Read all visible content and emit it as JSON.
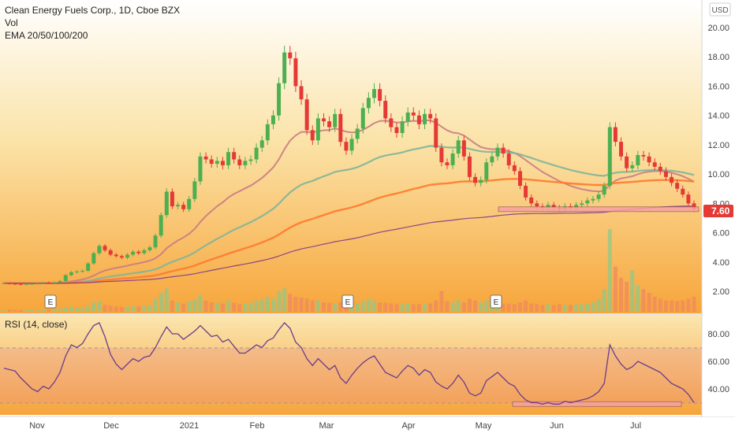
{
  "header": {
    "title": "Clean Energy Fuels Corp., 1D, Cboe BZX",
    "vol_label": "Vol",
    "ema_label": "EMA 20/50/100/200"
  },
  "currency": "USD",
  "current_price": "7.60",
  "rsi_label": "RSI (14, close)",
  "earnings_marker": "E",
  "colors": {
    "up": "#4caf50",
    "down": "#e53935",
    "ema20": "#c97b84",
    "ema50": "#7fb59a",
    "ema100": "#ff7a2e",
    "ema200": "#7e3a8c",
    "rsi_line": "#6a3d8a",
    "support_fill": "#f7a1a1",
    "price_tag": "#e53935"
  },
  "chart_data": [
    {
      "type": "candlestick",
      "title": "Clean Energy Fuels Corp., 1D, Cboe BZX",
      "ylabel": "USD",
      "ylim": [
        0.8,
        21
      ],
      "y_ticks": [
        "2.00",
        "4.00",
        "6.00",
        "8.00",
        "10.00",
        "12.00",
        "14.00",
        "16.00",
        "18.00",
        "20.00"
      ],
      "x_ticks": [
        "Nov",
        "Dec",
        "2021",
        "Feb",
        "Mar",
        "Apr",
        "May",
        "Jun",
        "Jul"
      ],
      "closes": [
        2.55,
        2.52,
        2.5,
        2.48,
        2.5,
        2.52,
        2.55,
        2.6,
        2.58,
        2.6,
        2.7,
        3.1,
        3.3,
        3.35,
        3.4,
        3.9,
        4.6,
        5.1,
        4.8,
        4.5,
        4.4,
        4.3,
        4.5,
        4.7,
        4.6,
        4.8,
        5.0,
        5.8,
        7.2,
        8.8,
        7.8,
        7.9,
        7.6,
        8.3,
        9.5,
        11.2,
        11.0,
        10.7,
        10.9,
        10.6,
        11.5,
        11.0,
        10.6,
        10.9,
        11.0,
        11.8,
        12.3,
        13.4,
        14.0,
        16.2,
        18.3,
        17.9,
        16.0,
        15.1,
        13.0,
        12.3,
        13.8,
        13.6,
        13.2,
        14.1,
        12.2,
        11.6,
        12.4,
        13.1,
        14.5,
        15.2,
        15.8,
        15.0,
        13.8,
        13.2,
        12.8,
        13.6,
        14.2,
        14.0,
        13.4,
        14.1,
        13.8,
        11.8,
        10.8,
        10.6,
        11.4,
        12.3,
        11.2,
        9.8,
        9.4,
        9.6,
        10.8,
        11.2,
        11.8,
        11.4,
        10.6,
        10.2,
        9.2,
        8.4,
        8.0,
        7.8,
        7.7,
        7.9,
        7.7,
        7.6,
        7.8,
        7.7,
        7.9,
        8.0,
        8.2,
        8.3,
        8.6,
        9.2,
        13.2,
        12.2,
        11.2,
        10.4,
        10.6,
        11.3,
        11.2,
        10.8,
        10.5,
        10.2,
        9.8,
        9.4,
        9.0,
        8.6,
        8.0,
        7.6
      ],
      "volumes": [
        0.06,
        0.06,
        0.05,
        0.05,
        0.06,
        0.06,
        0.05,
        0.07,
        0.06,
        0.07,
        0.09,
        0.12,
        0.14,
        0.1,
        0.1,
        0.15,
        0.25,
        0.28,
        0.18,
        0.16,
        0.14,
        0.13,
        0.14,
        0.15,
        0.14,
        0.16,
        0.18,
        0.35,
        0.5,
        0.62,
        0.3,
        0.25,
        0.22,
        0.28,
        0.34,
        0.45,
        0.3,
        0.25,
        0.24,
        0.22,
        0.3,
        0.24,
        0.2,
        0.22,
        0.24,
        0.3,
        0.34,
        0.4,
        0.35,
        0.55,
        0.62,
        0.48,
        0.4,
        0.38,
        0.35,
        0.3,
        0.3,
        0.25,
        0.24,
        0.22,
        0.26,
        0.22,
        0.2,
        0.22,
        0.28,
        0.35,
        0.3,
        0.25,
        0.24,
        0.22,
        0.2,
        0.2,
        0.22,
        0.2,
        0.2,
        0.2,
        0.22,
        0.3,
        0.55,
        0.28,
        0.25,
        0.3,
        0.25,
        0.35,
        0.3,
        0.25,
        0.3,
        0.25,
        0.2,
        0.2,
        0.22,
        0.2,
        0.25,
        0.3,
        0.22,
        0.2,
        0.18,
        0.2,
        0.18,
        0.2,
        0.18,
        0.18,
        0.2,
        0.2,
        0.22,
        0.25,
        0.35,
        0.6,
        2.2,
        1.2,
        0.9,
        0.8,
        1.1,
        0.7,
        0.6,
        0.5,
        0.4,
        0.35,
        0.3,
        0.3,
        0.28,
        0.3,
        0.35,
        0.4
      ],
      "support_level": 7.6,
      "earnings_markers": [
        "E",
        "E",
        "E"
      ]
    },
    {
      "type": "line",
      "title": "RSI (14, close)",
      "ylim": [
        25,
        95
      ],
      "y_ticks": [
        "40.00",
        "60.00",
        "80.00"
      ],
      "values": [
        55,
        54,
        53,
        48,
        44,
        40,
        38,
        42,
        40,
        45,
        52,
        64,
        72,
        70,
        73,
        80,
        86,
        88,
        78,
        65,
        58,
        54,
        58,
        62,
        60,
        63,
        64,
        70,
        78,
        85,
        80,
        80,
        76,
        79,
        82,
        86,
        82,
        78,
        79,
        74,
        76,
        71,
        66,
        66,
        69,
        72,
        70,
        75,
        77,
        83,
        88,
        84,
        74,
        70,
        62,
        57,
        62,
        58,
        54,
        57,
        48,
        44,
        50,
        55,
        59,
        62,
        64,
        58,
        52,
        50,
        48,
        53,
        57,
        55,
        50,
        54,
        52,
        45,
        42,
        40,
        44,
        50,
        45,
        37,
        35,
        37,
        46,
        49,
        52,
        48,
        44,
        42,
        36,
        32,
        30,
        30,
        29,
        30,
        29,
        29,
        31,
        30,
        31,
        32,
        33,
        35,
        38,
        44,
        72,
        64,
        58,
        54,
        56,
        60,
        58,
        56,
        54,
        52,
        48,
        44,
        42,
        40,
        36,
        30
      ],
      "support_level": 29
    }
  ]
}
